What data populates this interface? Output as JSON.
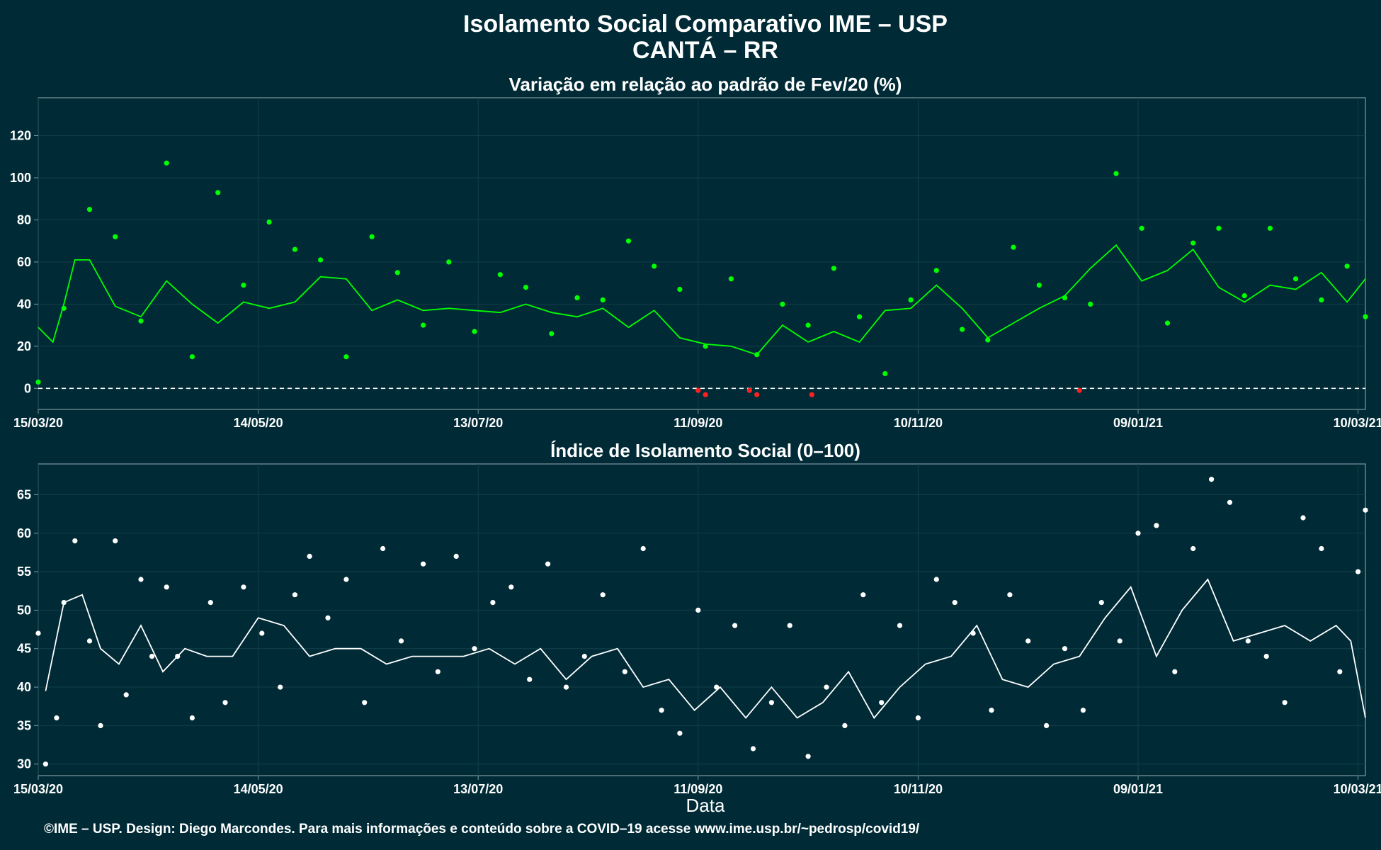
{
  "title": {
    "line1": "Isolamento Social Comparativo IME – USP",
    "line2": "CANTÁ – RR"
  },
  "footer": "©IME – USP. Design: Diego Marcondes. Para mais informações e conteúdo sobre a COVID–19 acesse www.ime.usp.br/~pedrosp/covid19/",
  "colors": {
    "background": "#002b36",
    "positive": "#00ff00",
    "negative": "#ff2020",
    "index": "#ffffff"
  },
  "chart_data": [
    {
      "type": "scatter",
      "title": "Variação em relação ao padrão de Fev/20 (%)",
      "xlabel": "",
      "ylabel": "",
      "x_range": [
        "2020-03-15",
        "2021-03-12"
      ],
      "xticks": [
        "15/03/20",
        "14/05/20",
        "13/07/20",
        "11/09/20",
        "10/11/20",
        "09/01/21",
        "10/03/21"
      ],
      "ylim": [
        -10,
        138
      ],
      "yticks": [
        0,
        20,
        40,
        60,
        80,
        100,
        120
      ],
      "reference_line": 0,
      "grid": true,
      "series": [
        {
          "kind": "points",
          "x": [
            "2020-03-15",
            "2020-03-22",
            "2020-03-29",
            "2020-04-05",
            "2020-04-12",
            "2020-04-19",
            "2020-04-26",
            "2020-05-03",
            "2020-05-10",
            "2020-05-17",
            "2020-05-24",
            "2020-05-31",
            "2020-06-07",
            "2020-06-14",
            "2020-06-21",
            "2020-06-28",
            "2020-07-05",
            "2020-07-12",
            "2020-07-19",
            "2020-07-26",
            "2020-08-02",
            "2020-08-09",
            "2020-08-16",
            "2020-08-23",
            "2020-08-30",
            "2020-09-06",
            "2020-09-13",
            "2020-09-20",
            "2020-09-27",
            "2020-10-04",
            "2020-10-11",
            "2020-10-18",
            "2020-10-25",
            "2020-11-01",
            "2020-11-08",
            "2020-11-15",
            "2020-11-22",
            "2020-11-29",
            "2020-12-06",
            "2020-12-13",
            "2020-12-20",
            "2020-12-27",
            "2021-01-03",
            "2021-01-10",
            "2021-01-17",
            "2021-01-24",
            "2021-01-31",
            "2021-02-07",
            "2021-02-14",
            "2021-02-21",
            "2021-02-28",
            "2021-03-07",
            "2021-03-12"
          ],
          "y": [
            3,
            38,
            85,
            72,
            32,
            107,
            15,
            93,
            49,
            79,
            66,
            61,
            15,
            72,
            55,
            30,
            60,
            27,
            54,
            48,
            26,
            43,
            42,
            70,
            58,
            47,
            20,
            52,
            16,
            40,
            30,
            57,
            34,
            7,
            42,
            56,
            28,
            23,
            67,
            49,
            43,
            40,
            102,
            76,
            31,
            69,
            76,
            44,
            76,
            52,
            42,
            58,
            34
          ]
        },
        {
          "kind": "points_negative",
          "x": [
            "2020-09-11",
            "2020-09-13",
            "2020-09-25",
            "2020-09-27",
            "2020-10-12",
            "2020-12-24"
          ],
          "y": [
            -1,
            -3,
            -1,
            -3,
            -3,
            -1
          ]
        },
        {
          "kind": "line",
          "x": [
            "2020-03-15",
            "2020-03-19",
            "2020-03-22",
            "2020-03-25",
            "2020-03-29",
            "2020-04-05",
            "2020-04-12",
            "2020-04-19",
            "2020-04-26",
            "2020-05-03",
            "2020-05-10",
            "2020-05-17",
            "2020-05-24",
            "2020-05-31",
            "2020-06-07",
            "2020-06-14",
            "2020-06-21",
            "2020-06-28",
            "2020-07-05",
            "2020-07-12",
            "2020-07-19",
            "2020-07-26",
            "2020-08-02",
            "2020-08-09",
            "2020-08-16",
            "2020-08-23",
            "2020-08-30",
            "2020-09-06",
            "2020-09-13",
            "2020-09-20",
            "2020-09-27",
            "2020-10-04",
            "2020-10-11",
            "2020-10-18",
            "2020-10-25",
            "2020-11-01",
            "2020-11-08",
            "2020-11-15",
            "2020-11-22",
            "2020-11-29",
            "2020-12-06",
            "2020-12-13",
            "2020-12-20",
            "2020-12-27",
            "2021-01-03",
            "2021-01-10",
            "2021-01-17",
            "2021-01-24",
            "2021-01-31",
            "2021-02-07",
            "2021-02-14",
            "2021-02-21",
            "2021-02-28",
            "2021-03-07",
            "2021-03-12"
          ],
          "y": [
            29,
            22,
            40,
            61,
            61,
            39,
            34,
            51,
            40,
            31,
            41,
            38,
            41,
            53,
            52,
            37,
            42,
            37,
            38,
            37,
            36,
            40,
            36,
            34,
            38,
            29,
            37,
            24,
            21,
            20,
            16,
            30,
            22,
            27,
            22,
            37,
            38,
            49,
            38,
            24,
            31,
            38,
            44,
            57,
            68,
            51,
            56,
            66,
            48,
            41,
            49,
            47,
            55,
            41,
            52
          ]
        }
      ]
    },
    {
      "type": "scatter",
      "title": "Índice de Isolamento Social (0–100)",
      "xlabel": "Data",
      "ylabel": "",
      "x_range": [
        "2020-03-15",
        "2021-03-12"
      ],
      "xticks": [
        "15/03/20",
        "14/05/20",
        "13/07/20",
        "11/09/20",
        "10/11/20",
        "09/01/21",
        "10/03/21"
      ],
      "ylim": [
        28.5,
        69
      ],
      "yticks": [
        30,
        35,
        40,
        45,
        50,
        55,
        60,
        65
      ],
      "grid": true,
      "series": [
        {
          "kind": "points",
          "x": [
            "2020-03-15",
            "2020-03-17",
            "2020-03-20",
            "2020-03-22",
            "2020-03-25",
            "2020-03-29",
            "2020-04-01",
            "2020-04-05",
            "2020-04-08",
            "2020-04-12",
            "2020-04-15",
            "2020-04-19",
            "2020-04-22",
            "2020-04-26",
            "2020-05-01",
            "2020-05-05",
            "2020-05-10",
            "2020-05-15",
            "2020-05-20",
            "2020-05-24",
            "2020-05-28",
            "2020-06-02",
            "2020-06-07",
            "2020-06-12",
            "2020-06-17",
            "2020-06-22",
            "2020-06-28",
            "2020-07-02",
            "2020-07-07",
            "2020-07-12",
            "2020-07-17",
            "2020-07-22",
            "2020-07-27",
            "2020-08-01",
            "2020-08-06",
            "2020-08-11",
            "2020-08-16",
            "2020-08-22",
            "2020-08-27",
            "2020-09-01",
            "2020-09-06",
            "2020-09-11",
            "2020-09-16",
            "2020-09-21",
            "2020-09-26",
            "2020-10-01",
            "2020-10-06",
            "2020-10-11",
            "2020-10-16",
            "2020-10-21",
            "2020-10-26",
            "2020-10-31",
            "2020-11-05",
            "2020-11-10",
            "2020-11-15",
            "2020-11-20",
            "2020-11-25",
            "2020-11-30",
            "2020-12-05",
            "2020-12-10",
            "2020-12-15",
            "2020-12-20",
            "2020-12-25",
            "2020-12-30",
            "2021-01-04",
            "2021-01-09",
            "2021-01-14",
            "2021-01-19",
            "2021-01-24",
            "2021-01-29",
            "2021-02-03",
            "2021-02-08",
            "2021-02-13",
            "2021-02-18",
            "2021-02-23",
            "2021-02-28",
            "2021-03-05",
            "2021-03-10",
            "2021-03-12"
          ],
          "y": [
            47,
            30,
            36,
            51,
            59,
            46,
            35,
            59,
            39,
            54,
            44,
            53,
            44,
            36,
            51,
            38,
            53,
            47,
            40,
            52,
            57,
            49,
            54,
            38,
            58,
            46,
            56,
            42,
            57,
            45,
            51,
            53,
            41,
            56,
            40,
            44,
            52,
            42,
            58,
            37,
            34,
            50,
            40,
            48,
            32,
            38,
            48,
            31,
            40,
            35,
            52,
            38,
            48,
            36,
            54,
            51,
            47,
            37,
            52,
            46,
            35,
            45,
            37,
            51,
            46,
            60,
            61,
            42,
            58,
            67,
            64,
            46,
            44,
            38,
            62,
            58,
            42,
            55,
            63
          ]
        },
        {
          "kind": "line",
          "x": [
            "2020-03-17",
            "2020-03-22",
            "2020-03-27",
            "2020-04-01",
            "2020-04-06",
            "2020-04-12",
            "2020-04-18",
            "2020-04-24",
            "2020-04-30",
            "2020-05-07",
            "2020-05-14",
            "2020-05-21",
            "2020-05-28",
            "2020-06-04",
            "2020-06-11",
            "2020-06-18",
            "2020-06-25",
            "2020-07-02",
            "2020-07-09",
            "2020-07-16",
            "2020-07-23",
            "2020-07-30",
            "2020-08-06",
            "2020-08-13",
            "2020-08-20",
            "2020-08-27",
            "2020-09-03",
            "2020-09-10",
            "2020-09-17",
            "2020-09-24",
            "2020-10-01",
            "2020-10-08",
            "2020-10-15",
            "2020-10-22",
            "2020-10-29",
            "2020-11-05",
            "2020-11-12",
            "2020-11-19",
            "2020-11-26",
            "2020-12-03",
            "2020-12-10",
            "2020-12-17",
            "2020-12-24",
            "2020-12-31",
            "2021-01-07",
            "2021-01-14",
            "2021-01-21",
            "2021-01-28",
            "2021-02-04",
            "2021-02-11",
            "2021-02-18",
            "2021-02-25",
            "2021-03-04",
            "2021-03-08",
            "2021-03-12"
          ],
          "y": [
            39.5,
            51,
            52,
            45,
            43,
            48,
            42,
            45,
            44,
            44,
            49,
            48,
            44,
            45,
            45,
            43,
            44,
            44,
            44,
            45,
            43,
            45,
            41,
            44,
            45,
            40,
            41,
            37,
            40,
            36,
            40,
            36,
            38,
            42,
            36,
            40,
            43,
            44,
            48,
            41,
            40,
            43,
            44,
            49,
            53,
            44,
            50,
            54,
            46,
            47,
            48,
            46,
            48,
            46,
            36
          ]
        }
      ]
    }
  ]
}
